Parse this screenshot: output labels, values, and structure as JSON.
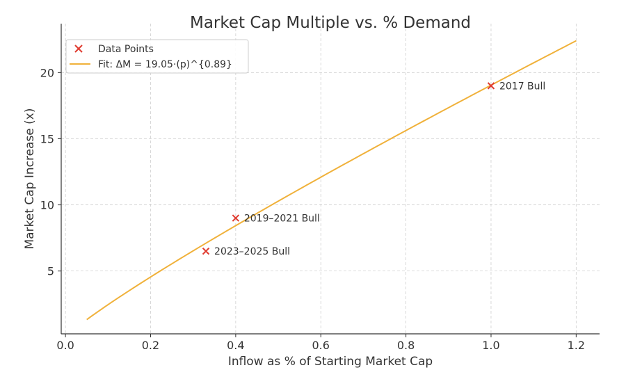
{
  "chart_data": {
    "type": "scatter",
    "title": "Market Cap Multiple vs. % Demand",
    "xlabel": "Inflow as % of Starting Market Cap",
    "ylabel": "Market Cap Increase (x)",
    "xlim": [
      -0.01,
      1.255
    ],
    "ylim": [
      0.25,
      23.7
    ],
    "xticks": [
      0.0,
      0.2,
      0.4,
      0.6,
      0.8,
      1.0,
      1.2
    ],
    "xtick_labels": [
      "0.0",
      "0.2",
      "0.4",
      "0.6",
      "0.8",
      "1.0",
      "1.2"
    ],
    "yticks": [
      5,
      10,
      15,
      20
    ],
    "ytick_labels": [
      "5",
      "10",
      "15",
      "20"
    ],
    "grid": true,
    "legend_position": "top-left",
    "series": [
      {
        "name": "Data Points",
        "kind": "scatter",
        "marker": "x",
        "color": "#e03c31",
        "points": [
          {
            "x": 1.0,
            "y": 19.0,
            "label": "2017 Bull"
          },
          {
            "x": 0.4,
            "y": 9.0,
            "label": "2019–2021 Bull"
          },
          {
            "x": 0.33,
            "y": 6.5,
            "label": "2023–2025 Bull"
          }
        ]
      },
      {
        "name": "Fit: ΔM = 19.05·(p)^{0.89}",
        "kind": "line",
        "color": "#f0b13a",
        "function": {
          "coef": 19.05,
          "exponent": 0.89
        },
        "x_range": [
          0.05,
          1.2
        ]
      }
    ]
  }
}
